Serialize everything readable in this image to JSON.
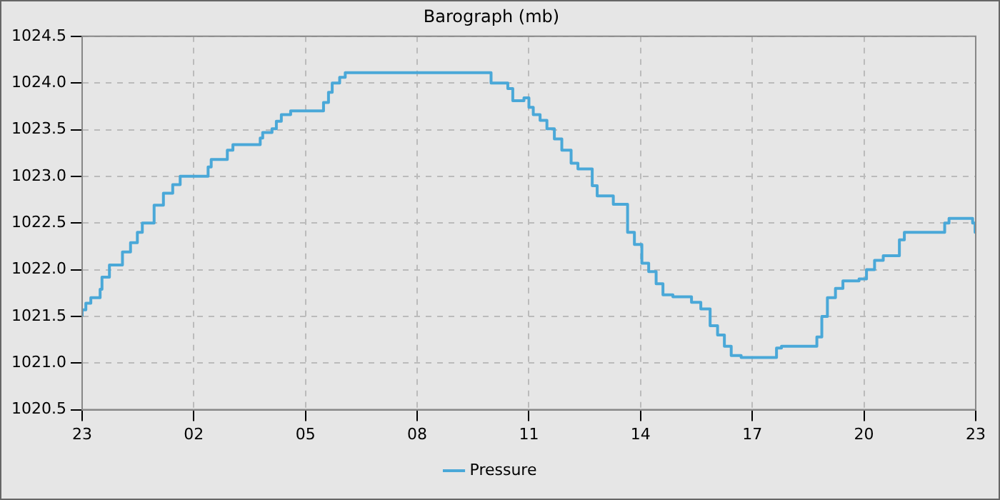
{
  "chart_data": {
    "type": "step",
    "title": "Barograph (mb)",
    "xlim": [
      "--01-01T23:00",
      "--01-02T23:00"
    ],
    "xticks": [
      {
        "value": "--01-01T23:00",
        "label": "23"
      },
      {
        "value": "--01-02T02:00",
        "label": "02"
      },
      {
        "value": "--01-02T05:00",
        "label": "05"
      },
      {
        "value": "--01-02T08:00",
        "label": "08"
      },
      {
        "value": "--01-02T11:00",
        "label": "11"
      },
      {
        "value": "--01-02T14:00",
        "label": "14"
      },
      {
        "value": "--01-02T17:00",
        "label": "17"
      },
      {
        "value": "--01-02T20:00",
        "label": "20"
      },
      {
        "value": "--01-02T23:00",
        "label": "23"
      }
    ],
    "ylim": [
      1020.5,
      1024.5
    ],
    "yticks": [
      {
        "value": 1020.5,
        "label": "1020.5"
      },
      {
        "value": 1021,
        "label": "1021.0"
      },
      {
        "value": 1021.5,
        "label": "1021.5"
      },
      {
        "value": 1022,
        "label": "1022.0"
      },
      {
        "value": 1022.5,
        "label": "1022.5"
      },
      {
        "value": 1023,
        "label": "1023.0"
      },
      {
        "value": 1023.5,
        "label": "1023.5"
      },
      {
        "value": 1024,
        "label": "1024.0"
      },
      {
        "value": 1024.5,
        "label": "1024.5"
      }
    ],
    "grid": true,
    "legend": "bottom",
    "marker": "none",
    "line_style": "solid",
    "series": [
      {
        "name": "Pressure",
        "color": "#4aa8d8",
        "x": [
          "--01-01T23:00",
          "--01-01T23:06",
          "--01-01T23:14",
          "--01-01T23:29",
          "--01-01T23:32",
          "--01-01T23:44",
          "--01-02T00:05",
          "--01-02T00:18",
          "--01-02T00:29",
          "--01-02T00:37",
          "--01-02T00:56",
          "--01-02T01:11",
          "--01-02T01:26",
          "--01-02T01:38",
          "--01-02T01:57",
          "--01-02T02:23",
          "--01-02T02:28",
          "--01-02T02:54",
          "--01-02T03:03",
          "--01-02T03:13",
          "--01-02T03:47",
          "--01-02T03:51",
          "--01-02T04:06",
          "--01-02T04:13",
          "--01-02T04:21",
          "--01-02T04:36",
          "--01-02T04:40",
          "--01-02T05:29",
          "--01-02T05:37",
          "--01-02T05:43",
          "--01-02T05:55",
          "--01-02T06:04",
          "--01-02T06:11",
          "--01-02T07:58",
          "--01-02T09:59",
          "--01-02T10:03",
          "--01-02T10:26",
          "--01-02T10:34",
          "--01-02T10:52",
          "--01-02T11:00",
          "--01-02T11:07",
          "--01-02T11:18",
          "--01-02T11:29",
          "--01-02T11:41",
          "--01-02T11:53",
          "--01-02T12:08",
          "--01-02T12:19",
          "--01-02T12:42",
          "--01-02T12:50",
          "--01-02T13:16",
          "--01-02T13:39",
          "--01-02T13:50",
          "--01-02T14:02",
          "--01-02T14:13",
          "--01-02T14:25",
          "--01-02T14:36",
          "--01-02T14:52",
          "--01-02T15:22",
          "--01-02T15:37",
          "--01-02T15:52",
          "--01-02T16:04",
          "--01-02T16:15",
          "--01-02T16:26",
          "--01-02T16:42",
          "--01-02T17:01",
          "--01-02T17:39",
          "--01-02T17:47",
          "--01-02T17:58",
          "--01-02T18:44",
          "--01-02T18:52",
          "--01-02T19:01",
          "--01-02T19:14",
          "--01-02T19:26",
          "--01-02T19:52",
          "--01-02T20:04",
          "--01-02T20:17",
          "--01-02T20:31",
          "--01-02T20:57",
          "--01-02T21:05",
          "--01-02T21:16",
          "--01-02T22:10",
          "--01-02T22:17",
          "--01-02T22:25",
          "--01-02T22:55",
          "--01-02T22:59",
          "--01-02T23:00"
        ],
        "values": [
          1021.5,
          1021.57,
          1021.64,
          1021.7,
          1021.79,
          1021.92,
          1022.05,
          1022.19,
          1022.29,
          1022.4,
          1022.5,
          1022.69,
          1022.82,
          1022.91,
          1023.0,
          1023.0,
          1023.1,
          1023.18,
          1023.28,
          1023.34,
          1023.34,
          1023.41,
          1023.47,
          1023.51,
          1023.59,
          1023.66,
          1023.7,
          1023.7,
          1023.79,
          1023.9,
          1024.0,
          1024.06,
          1024.11,
          1024.11,
          1024.11,
          1024.0,
          1024.0,
          1023.94,
          1023.81,
          1023.84,
          1023.74,
          1023.66,
          1023.6,
          1023.51,
          1023.4,
          1023.28,
          1023.14,
          1023.08,
          1022.9,
          1022.79,
          1022.7,
          1022.4,
          1022.27,
          1022.07,
          1021.98,
          1021.85,
          1021.73,
          1021.71,
          1021.65,
          1021.58,
          1021.4,
          1021.3,
          1021.18,
          1021.08,
          1021.06,
          1021.06,
          1021.16,
          1021.18,
          1021.18,
          1021.28,
          1021.5,
          1021.7,
          1021.8,
          1021.88,
          1021.9,
          1022.0,
          1022.1,
          1022.15,
          1022.32,
          1022.4,
          1022.4,
          1022.5,
          1022.55,
          1022.55,
          1022.5,
          1022.4
        ]
      }
    ]
  }
}
